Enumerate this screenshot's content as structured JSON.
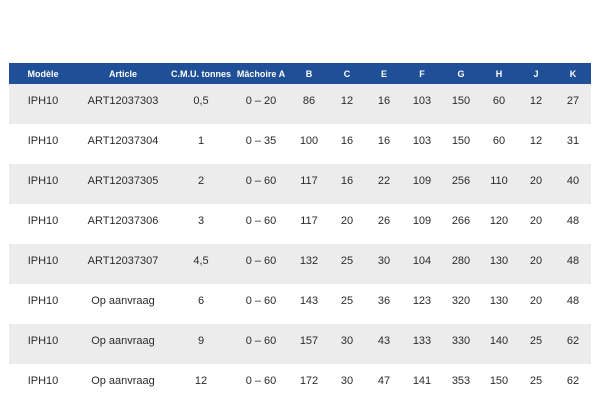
{
  "table": {
    "headers": [
      "Modèle",
      "Article",
      "C.M.U. tonnes",
      "Mâchoire A",
      "B",
      "C",
      "E",
      "F",
      "G",
      "H",
      "J",
      "K"
    ],
    "rows": [
      [
        "IPH10",
        "ART12037303",
        "0,5",
        "0 – 20",
        "86",
        "12",
        "16",
        "103",
        "150",
        "60",
        "12",
        "27"
      ],
      [
        "IPH10",
        "ART12037304",
        "1",
        "0 – 35",
        "100",
        "16",
        "16",
        "103",
        "150",
        "60",
        "12",
        "31"
      ],
      [
        "IPH10",
        "ART12037305",
        "2",
        "0 – 60",
        "117",
        "16",
        "22",
        "109",
        "256",
        "110",
        "20",
        "40"
      ],
      [
        "IPH10",
        "ART12037306",
        "3",
        "0 – 60",
        "117",
        "20",
        "26",
        "109",
        "266",
        "120",
        "20",
        "48"
      ],
      [
        "IPH10",
        "ART12037307",
        "4,5",
        "0 – 60",
        "132",
        "25",
        "30",
        "104",
        "280",
        "130",
        "20",
        "48"
      ],
      [
        "IPH10",
        "Op aanvraag",
        "6",
        "0 – 60",
        "143",
        "25",
        "36",
        "123",
        "320",
        "130",
        "20",
        "48"
      ],
      [
        "IPH10",
        "Op aanvraag",
        "9",
        "0 – 60",
        "157",
        "30",
        "43",
        "133",
        "330",
        "140",
        "25",
        "62"
      ],
      [
        "IPH10",
        "Op aanvraag",
        "12",
        "0 – 60",
        "172",
        "30",
        "47",
        "141",
        "353",
        "150",
        "25",
        "62"
      ]
    ]
  }
}
